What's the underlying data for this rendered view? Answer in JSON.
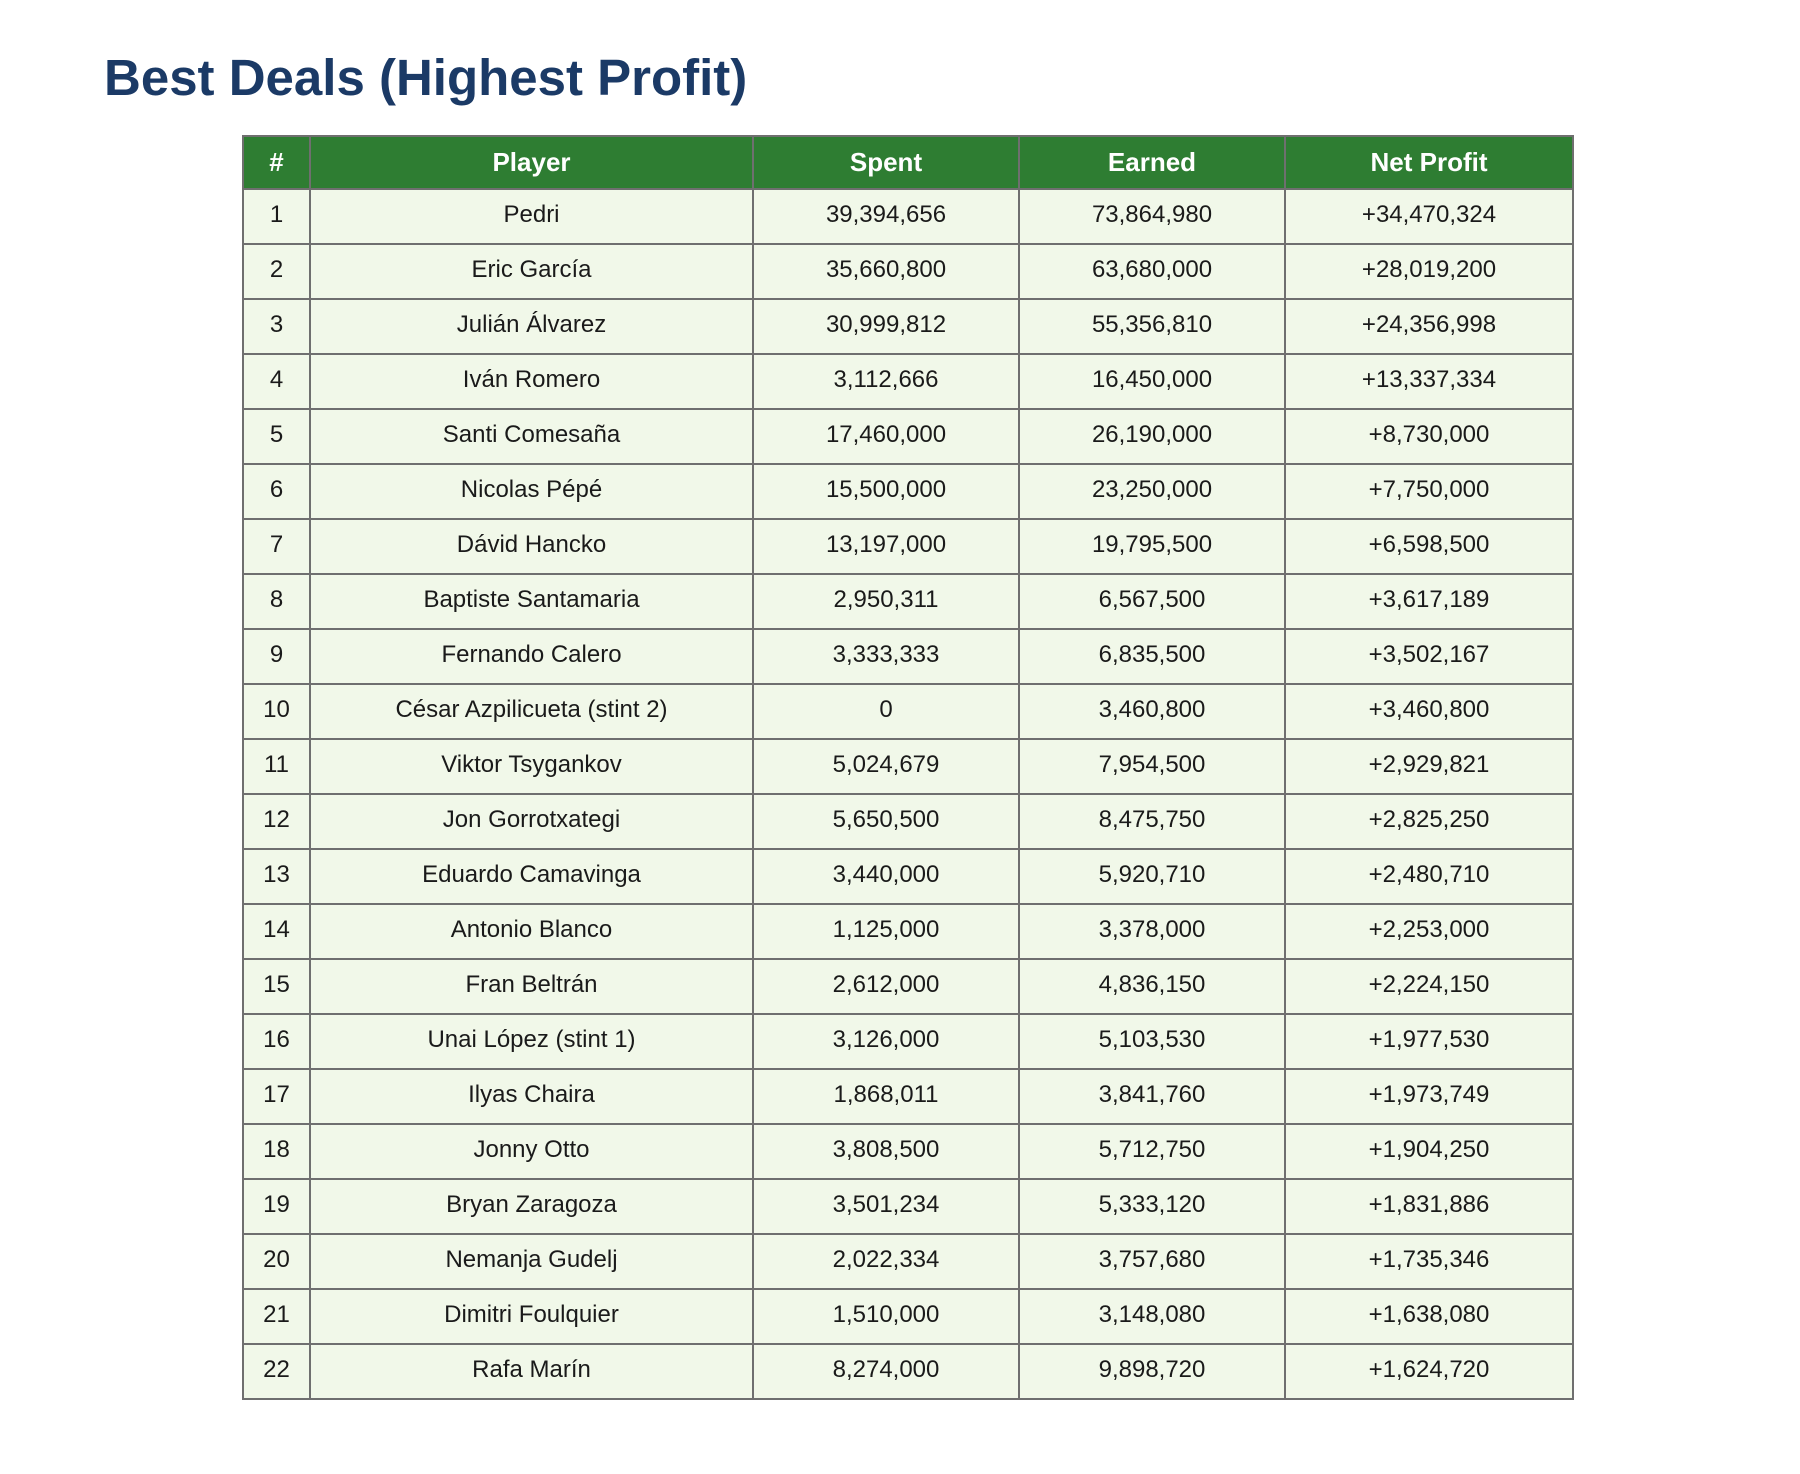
{
  "title": "Best Deals (Highest Profit)",
  "colors": {
    "title": "#1b3a66",
    "header_bg": "#2e7d32",
    "header_text": "#ffffff",
    "row_bg": "#f1f8e9",
    "border": "#6f6f6f"
  },
  "table": {
    "headers": [
      "#",
      "Player",
      "Spent",
      "Earned",
      "Net Profit"
    ],
    "rows": [
      [
        "1",
        "Pedri",
        "39,394,656",
        "73,864,980",
        "+34,470,324"
      ],
      [
        "2",
        "Eric García",
        "35,660,800",
        "63,680,000",
        "+28,019,200"
      ],
      [
        "3",
        "Julián Álvarez",
        "30,999,812",
        "55,356,810",
        "+24,356,998"
      ],
      [
        "4",
        "Iván Romero",
        "3,112,666",
        "16,450,000",
        "+13,337,334"
      ],
      [
        "5",
        "Santi Comesaña",
        "17,460,000",
        "26,190,000",
        "+8,730,000"
      ],
      [
        "6",
        "Nicolas Pépé",
        "15,500,000",
        "23,250,000",
        "+7,750,000"
      ],
      [
        "7",
        "Dávid Hancko",
        "13,197,000",
        "19,795,500",
        "+6,598,500"
      ],
      [
        "8",
        "Baptiste Santamaria",
        "2,950,311",
        "6,567,500",
        "+3,617,189"
      ],
      [
        "9",
        "Fernando Calero",
        "3,333,333",
        "6,835,500",
        "+3,502,167"
      ],
      [
        "10",
        "César Azpilicueta (stint 2)",
        "0",
        "3,460,800",
        "+3,460,800"
      ],
      [
        "11",
        "Viktor Tsygankov",
        "5,024,679",
        "7,954,500",
        "+2,929,821"
      ],
      [
        "12",
        "Jon Gorrotxategi",
        "5,650,500",
        "8,475,750",
        "+2,825,250"
      ],
      [
        "13",
        "Eduardo Camavinga",
        "3,440,000",
        "5,920,710",
        "+2,480,710"
      ],
      [
        "14",
        "Antonio Blanco",
        "1,125,000",
        "3,378,000",
        "+2,253,000"
      ],
      [
        "15",
        "Fran Beltrán",
        "2,612,000",
        "4,836,150",
        "+2,224,150"
      ],
      [
        "16",
        "Unai López (stint 1)",
        "3,126,000",
        "5,103,530",
        "+1,977,530"
      ],
      [
        "17",
        "Ilyas Chaira",
        "1,868,011",
        "3,841,760",
        "+1,973,749"
      ],
      [
        "18",
        "Jonny Otto",
        "3,808,500",
        "5,712,750",
        "+1,904,250"
      ],
      [
        "19",
        "Bryan Zaragoza",
        "3,501,234",
        "5,333,120",
        "+1,831,886"
      ],
      [
        "20",
        "Nemanja Gudelj",
        "2,022,334",
        "3,757,680",
        "+1,735,346"
      ],
      [
        "21",
        "Dimitri Foulquier",
        "1,510,000",
        "3,148,080",
        "+1,638,080"
      ],
      [
        "22",
        "Rafa Marín",
        "8,274,000",
        "9,898,720",
        "+1,624,720"
      ]
    ]
  }
}
